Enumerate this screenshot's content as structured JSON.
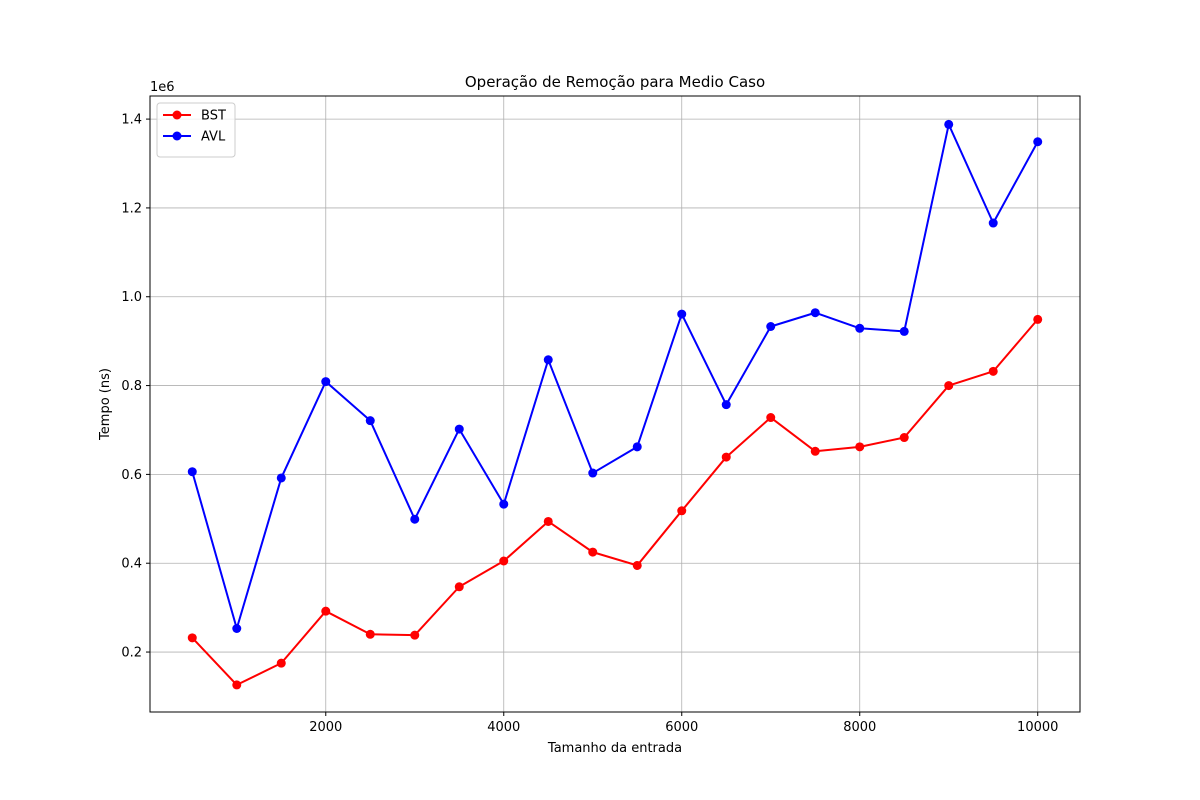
{
  "chart_data": {
    "type": "line",
    "title": "Operação de Remoção para Medio Caso",
    "xlabel": "Tamanho da entrada",
    "ylabel": "Tempo (ns)",
    "y_offset_label": "1e6",
    "xlim": [
      25,
      10475
    ],
    "ylim": [
      0.065,
      1.452
    ],
    "xticks": [
      2000,
      4000,
      6000,
      8000,
      10000
    ],
    "xtick_labels": [
      "2000",
      "4000",
      "6000",
      "8000",
      "10000"
    ],
    "yticks": [
      0.2,
      0.4,
      0.6,
      0.8,
      1.0,
      1.2,
      1.4
    ],
    "ytick_labels": [
      "0.2",
      "0.4",
      "0.6",
      "0.8",
      "1.0",
      "1.2",
      "1.4"
    ],
    "grid": true,
    "legend_position": "top-left",
    "x": [
      500,
      1000,
      1500,
      2000,
      2500,
      3000,
      3500,
      4000,
      4500,
      5000,
      5500,
      6000,
      6500,
      7000,
      7500,
      8000,
      8500,
      9000,
      9500,
      10000
    ],
    "series": [
      {
        "name": "BST",
        "color": "#ff0000",
        "values": [
          0.232,
          0.126,
          0.175,
          0.292,
          0.24,
          0.238,
          0.347,
          0.405,
          0.494,
          0.425,
          0.395,
          0.518,
          0.639,
          0.728,
          0.652,
          0.662,
          0.683,
          0.8,
          0.832,
          0.949
        ]
      },
      {
        "name": "AVL",
        "color": "#0000ff",
        "values": [
          0.606,
          0.253,
          0.592,
          0.809,
          0.721,
          0.499,
          0.702,
          0.533,
          0.858,
          0.603,
          0.662,
          0.961,
          0.757,
          0.933,
          0.964,
          0.929,
          0.922,
          1.388,
          1.166,
          1.349
        ]
      }
    ]
  }
}
